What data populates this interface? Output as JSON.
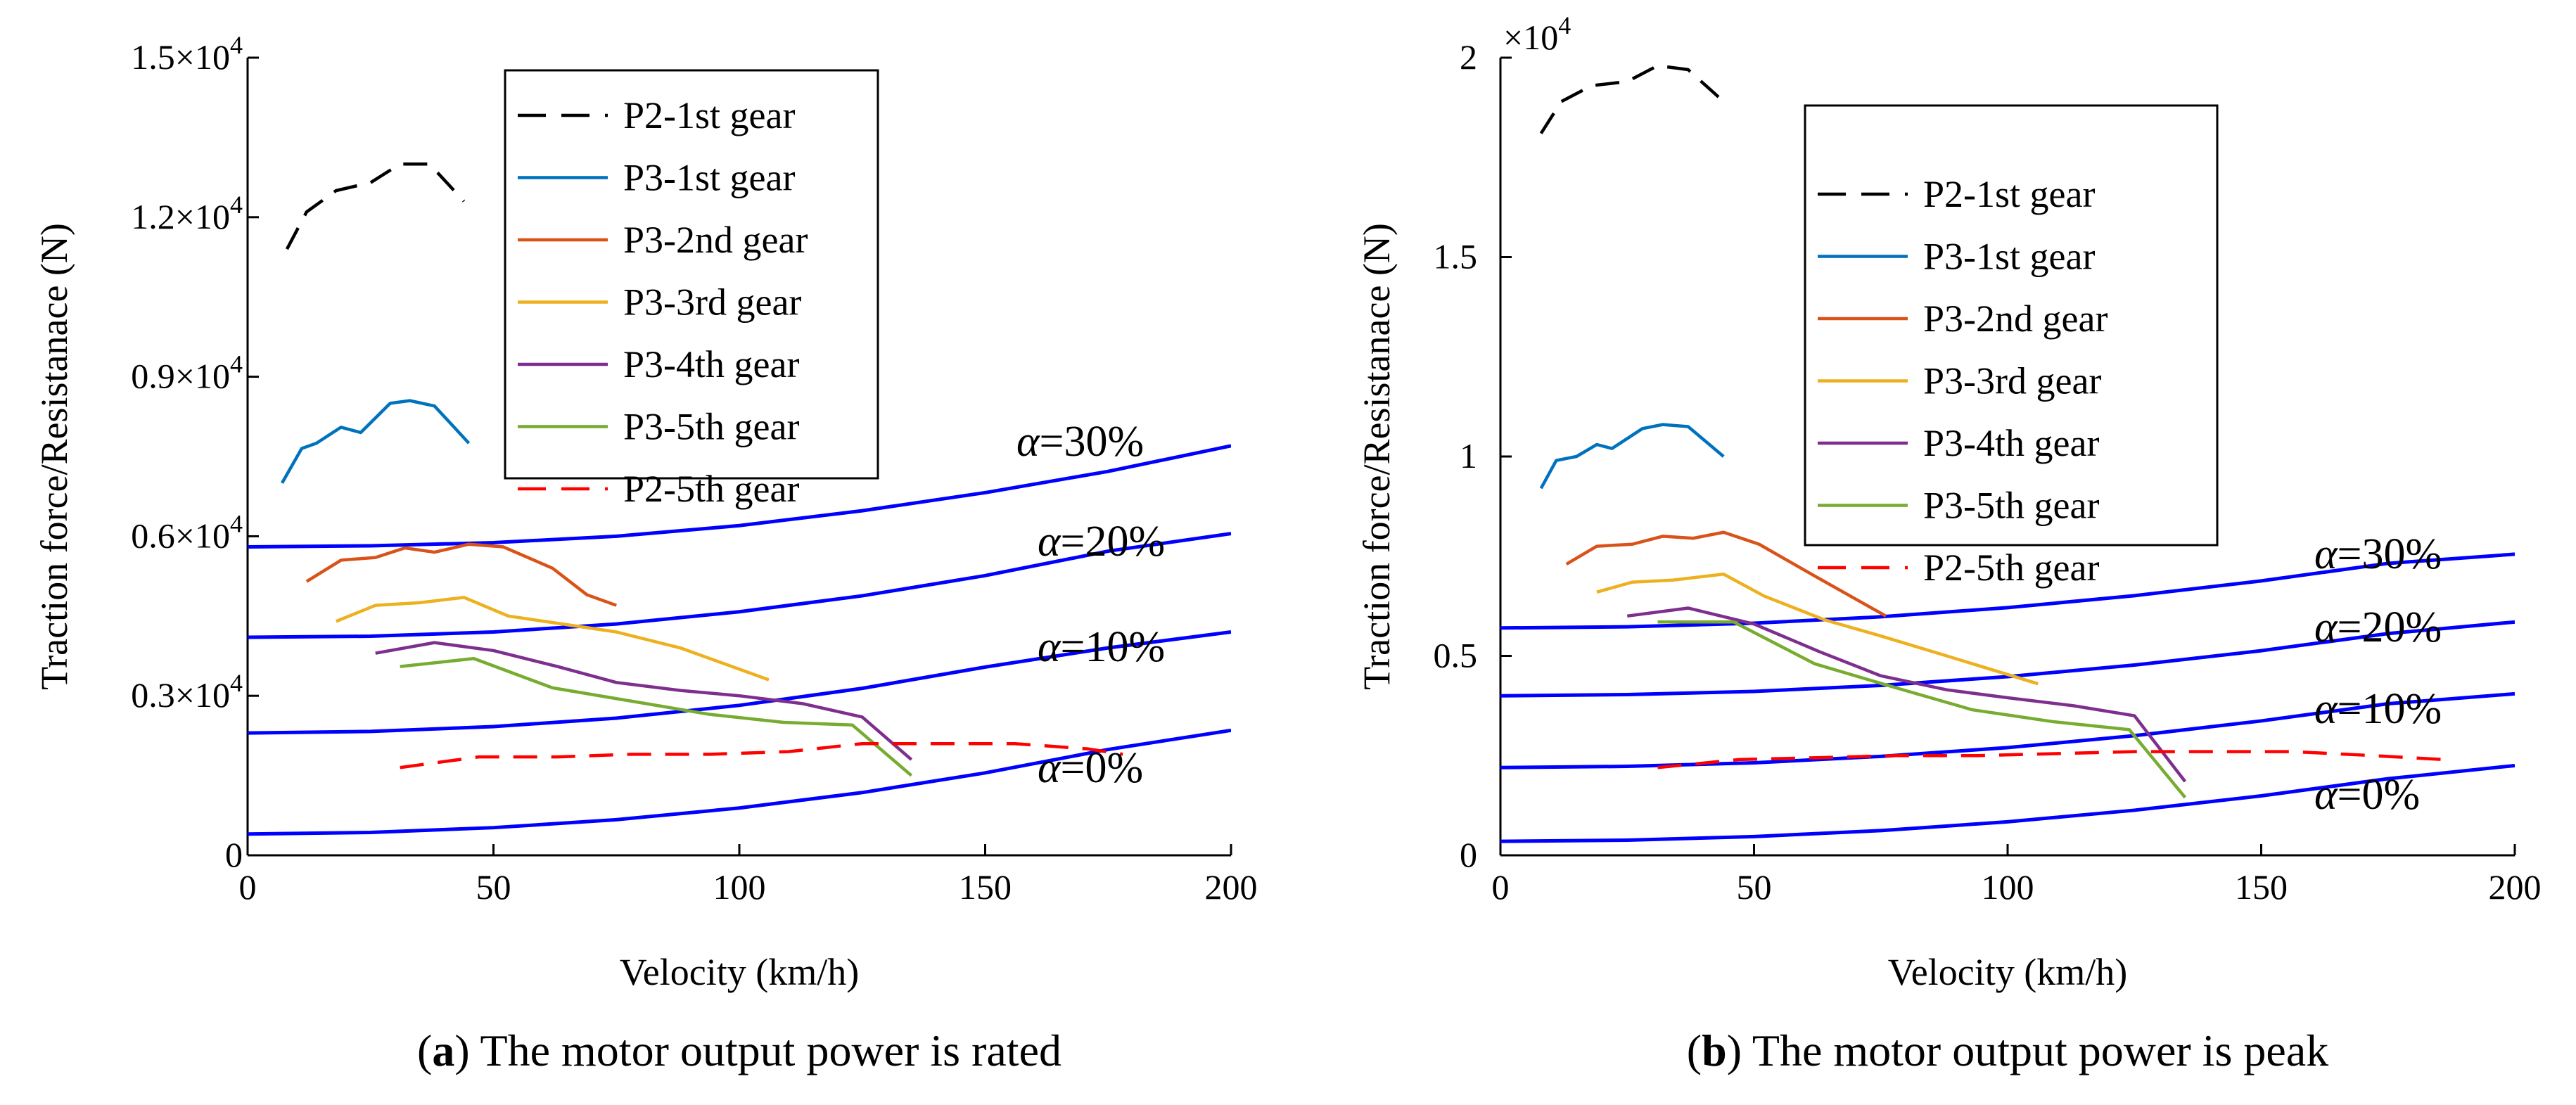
{
  "chart_data": [
    {
      "type": "line",
      "panel": "a",
      "caption_letter": "a",
      "caption_text": " The motor output power is rated",
      "xlabel": "Velocity (km/h)",
      "ylabel": "Traction force/Resistanace (N)",
      "xlim": [
        0,
        200
      ],
      "ylim": [
        0,
        15000
      ],
      "xticks": [
        "0",
        "50",
        "100",
        "150",
        "200"
      ],
      "yticks": [
        {
          "value": 0,
          "label": "0"
        },
        {
          "value": 3000,
          "label": "0.3×10",
          "exp": "4"
        },
        {
          "value": 6000,
          "label": "0.6×10",
          "exp": "4"
        },
        {
          "value": 9000,
          "label": "0.9×10",
          "exp": "4"
        },
        {
          "value": 12000,
          "label": "1.2×10",
          "exp": "4"
        },
        {
          "value": 15000,
          "label": "1.5×10",
          "exp": "4"
        }
      ],
      "legend_position": "top-center",
      "series": [
        {
          "name": "P2-1st gear",
          "color": "#000000",
          "dash": "dashed",
          "x": [
            8,
            12,
            18,
            25,
            31,
            37,
            44
          ],
          "y": [
            11400,
            12100,
            12500,
            12650,
            13000,
            13000,
            12300
          ]
        },
        {
          "name": "P3-1st gear",
          "color": "#0072BD",
          "dash": "solid",
          "x": [
            7,
            11,
            14,
            19,
            23,
            29,
            33,
            38,
            45
          ],
          "y": [
            7000,
            7650,
            7750,
            8050,
            7950,
            8500,
            8550,
            8450,
            7750
          ]
        },
        {
          "name": "P3-2nd gear",
          "color": "#D95319",
          "dash": "solid",
          "x": [
            12,
            19,
            26,
            32,
            38,
            45,
            52,
            62,
            69,
            75
          ],
          "y": [
            5150,
            5550,
            5600,
            5780,
            5700,
            5850,
            5800,
            5400,
            4900,
            4700
          ]
        },
        {
          "name": "P3-3rd gear",
          "color": "#EDB120",
          "dash": "solid",
          "x": [
            18,
            26,
            35,
            44,
            53,
            64,
            75,
            88,
            106
          ],
          "y": [
            4400,
            4700,
            4750,
            4850,
            4500,
            4350,
            4200,
            3900,
            3300
          ]
        },
        {
          "name": "P3-4th gear",
          "color": "#7E2F8E",
          "dash": "solid",
          "x": [
            26,
            38,
            50,
            63,
            75,
            88,
            100,
            113,
            125,
            135
          ],
          "y": [
            3800,
            4000,
            3850,
            3550,
            3250,
            3100,
            3000,
            2850,
            2600,
            1800
          ]
        },
        {
          "name": "P3-5th gear",
          "color": "#77AC30",
          "dash": "solid",
          "x": [
            31,
            46,
            62,
            78,
            94,
            109,
            123,
            135
          ],
          "y": [
            3550,
            3700,
            3150,
            2900,
            2650,
            2500,
            2450,
            1500
          ]
        },
        {
          "name": "P2-5th gear",
          "color": "#FF0000",
          "dash": "dashed",
          "x": [
            31,
            47,
            63,
            78,
            94,
            110,
            125,
            140,
            156,
            171,
            178
          ],
          "y": [
            1650,
            1850,
            1850,
            1900,
            1900,
            1950,
            2100,
            2100,
            2100,
            2000,
            1900
          ]
        }
      ],
      "resistance": [
        {
          "label": "=30%",
          "color": "#0000FF",
          "x": [
            0,
            25,
            50,
            75,
            100,
            125,
            150,
            175,
            200
          ],
          "y": [
            5800,
            5820,
            5880,
            6000,
            6200,
            6480,
            6820,
            7220,
            7700
          ]
        },
        {
          "label": "=20%",
          "color": "#0000FF",
          "x": [
            0,
            25,
            50,
            75,
            100,
            125,
            150,
            175,
            200
          ],
          "y": [
            4100,
            4120,
            4200,
            4350,
            4580,
            4880,
            5260,
            5720,
            6050
          ]
        },
        {
          "label": "=10%",
          "color": "#0000FF",
          "x": [
            0,
            25,
            50,
            75,
            100,
            125,
            150,
            175,
            200
          ],
          "y": [
            2300,
            2330,
            2420,
            2580,
            2820,
            3140,
            3540,
            3900,
            4200
          ]
        },
        {
          "label": "=0%",
          "color": "#0000FF",
          "x": [
            0,
            25,
            50,
            75,
            100,
            125,
            150,
            175,
            200
          ],
          "y": [
            400,
            430,
            520,
            670,
            890,
            1180,
            1550,
            1990,
            2350
          ]
        }
      ],
      "annotation_symbol": "α"
    },
    {
      "type": "line",
      "panel": "b",
      "caption_letter": "b",
      "caption_text": " The motor output power is peak",
      "xlabel": "Velocity (km/h)",
      "ylabel": "Traction force/Resistanace (N)",
      "axis_multiplier": "×10",
      "axis_multiplier_exp": "4",
      "xlim": [
        0,
        200
      ],
      "ylim": [
        0,
        20000
      ],
      "xticks": [
        "0",
        "50",
        "100",
        "150",
        "200"
      ],
      "yticks": [
        {
          "value": 0,
          "label": "0"
        },
        {
          "value": 5000,
          "label": "0.5"
        },
        {
          "value": 10000,
          "label": "1"
        },
        {
          "value": 15000,
          "label": "1.5"
        },
        {
          "value": 20000,
          "label": "2"
        }
      ],
      "legend_position": "top-center",
      "series": [
        {
          "name": "P2-1st gear",
          "color": "#000000",
          "dash": "dashed",
          "x": [
            8,
            12,
            18,
            25,
            31,
            37,
            44
          ],
          "y": [
            18100,
            18900,
            19300,
            19400,
            19800,
            19700,
            18900
          ]
        },
        {
          "name": "P3-1st gear",
          "color": "#0072BD",
          "dash": "solid",
          "x": [
            8,
            11,
            15,
            19,
            22,
            28,
            32,
            37,
            44
          ],
          "y": [
            9200,
            9900,
            10000,
            10300,
            10200,
            10700,
            10800,
            10750,
            10000
          ]
        },
        {
          "name": "P3-2nd gear",
          "color": "#D95319",
          "dash": "solid",
          "x": [
            13,
            19,
            26,
            32,
            38,
            44,
            51,
            62,
            76
          ],
          "y": [
            7300,
            7750,
            7800,
            8000,
            7950,
            8100,
            7800,
            7000,
            6000
          ]
        },
        {
          "name": "P3-3rd gear",
          "color": "#EDB120",
          "dash": "solid",
          "x": [
            19,
            26,
            34,
            44,
            52,
            64,
            75,
            88,
            106
          ],
          "y": [
            6600,
            6850,
            6900,
            7050,
            6500,
            5900,
            5500,
            5000,
            4300
          ]
        },
        {
          "name": "P3-4th gear",
          "color": "#7E2F8E",
          "dash": "solid",
          "x": [
            25,
            37,
            50,
            63,
            75,
            88,
            100,
            113,
            125,
            135
          ],
          "y": [
            6000,
            6200,
            5800,
            5100,
            4500,
            4150,
            3950,
            3750,
            3500,
            1850
          ]
        },
        {
          "name": "P3-5th gear",
          "color": "#77AC30",
          "dash": "solid",
          "x": [
            31,
            46,
            62,
            78,
            93,
            109,
            124,
            135
          ],
          "y": [
            5850,
            5850,
            4800,
            4200,
            3650,
            3350,
            3150,
            1450
          ]
        },
        {
          "name": "P2-5th gear",
          "color": "#FF0000",
          "dash": "dashed",
          "x": [
            31,
            47,
            63,
            78,
            94,
            110,
            125,
            140,
            156,
            172,
            186
          ],
          "y": [
            2200,
            2400,
            2450,
            2500,
            2500,
            2550,
            2600,
            2600,
            2600,
            2500,
            2400
          ]
        }
      ],
      "resistance": [
        {
          "label": "=30%",
          "color": "#0000FF",
          "x": [
            0,
            25,
            50,
            75,
            100,
            125,
            150,
            175,
            200
          ],
          "y": [
            5700,
            5730,
            5820,
            5980,
            6210,
            6510,
            6880,
            7320,
            7550
          ]
        },
        {
          "label": "=20%",
          "color": "#0000FF",
          "x": [
            0,
            25,
            50,
            75,
            100,
            125,
            150,
            175,
            200
          ],
          "y": [
            4000,
            4030,
            4110,
            4260,
            4480,
            4770,
            5130,
            5560,
            5850
          ]
        },
        {
          "label": "=10%",
          "color": "#0000FF",
          "x": [
            0,
            25,
            50,
            75,
            100,
            125,
            150,
            175,
            200
          ],
          "y": [
            2200,
            2230,
            2320,
            2480,
            2700,
            3000,
            3370,
            3800,
            4050
          ]
        },
        {
          "label": "=0%",
          "color": "#0000FF",
          "x": [
            0,
            25,
            50,
            75,
            100,
            125,
            150,
            175,
            200
          ],
          "y": [
            350,
            380,
            470,
            620,
            840,
            1130,
            1490,
            1920,
            2250
          ]
        }
      ],
      "annotation_symbol": "α"
    }
  ]
}
